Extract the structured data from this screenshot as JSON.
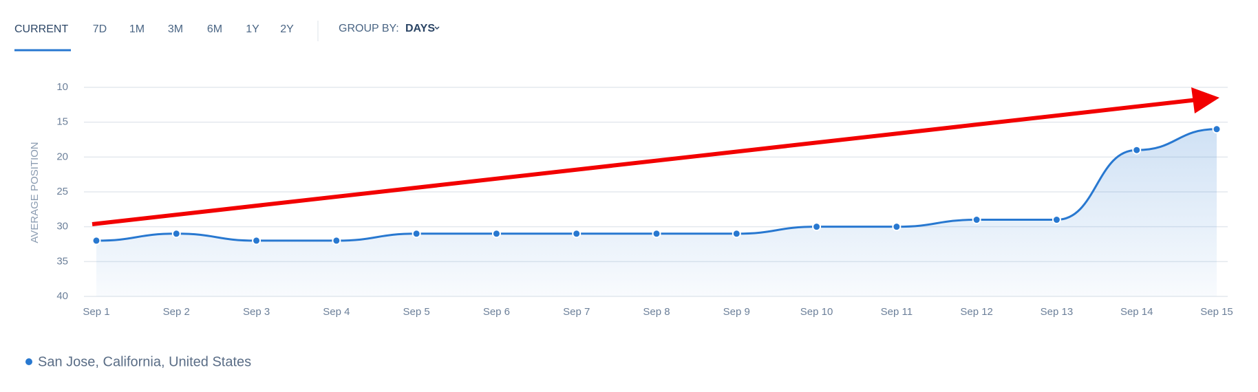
{
  "toolbar": {
    "tabs": [
      "CURRENT",
      "7D",
      "1M",
      "3M",
      "6M",
      "1Y",
      "2Y"
    ],
    "group_by_label": "GROUP BY:",
    "group_by_value": "DAYS"
  },
  "chart_data": {
    "type": "line",
    "y_label": "AVERAGE POSITION",
    "categories": [
      "Sep 1",
      "Sep 2",
      "Sep 3",
      "Sep 4",
      "Sep 5",
      "Sep 6",
      "Sep 7",
      "Sep 8",
      "Sep 9",
      "Sep 10",
      "Sep 11",
      "Sep 12",
      "Sep 13",
      "Sep 14",
      "Sep 15"
    ],
    "series": [
      {
        "name": "San Jose, California, United States",
        "color": "#2878d0",
        "values": [
          32,
          31,
          32,
          32,
          31,
          31,
          31,
          31,
          31,
          30,
          30,
          29,
          29,
          19,
          16
        ]
      }
    ],
    "ylim": [
      10,
      40
    ],
    "yticks": [
      10,
      15,
      20,
      25,
      30,
      35,
      40
    ],
    "y_reversed": true,
    "grid": true
  }
}
